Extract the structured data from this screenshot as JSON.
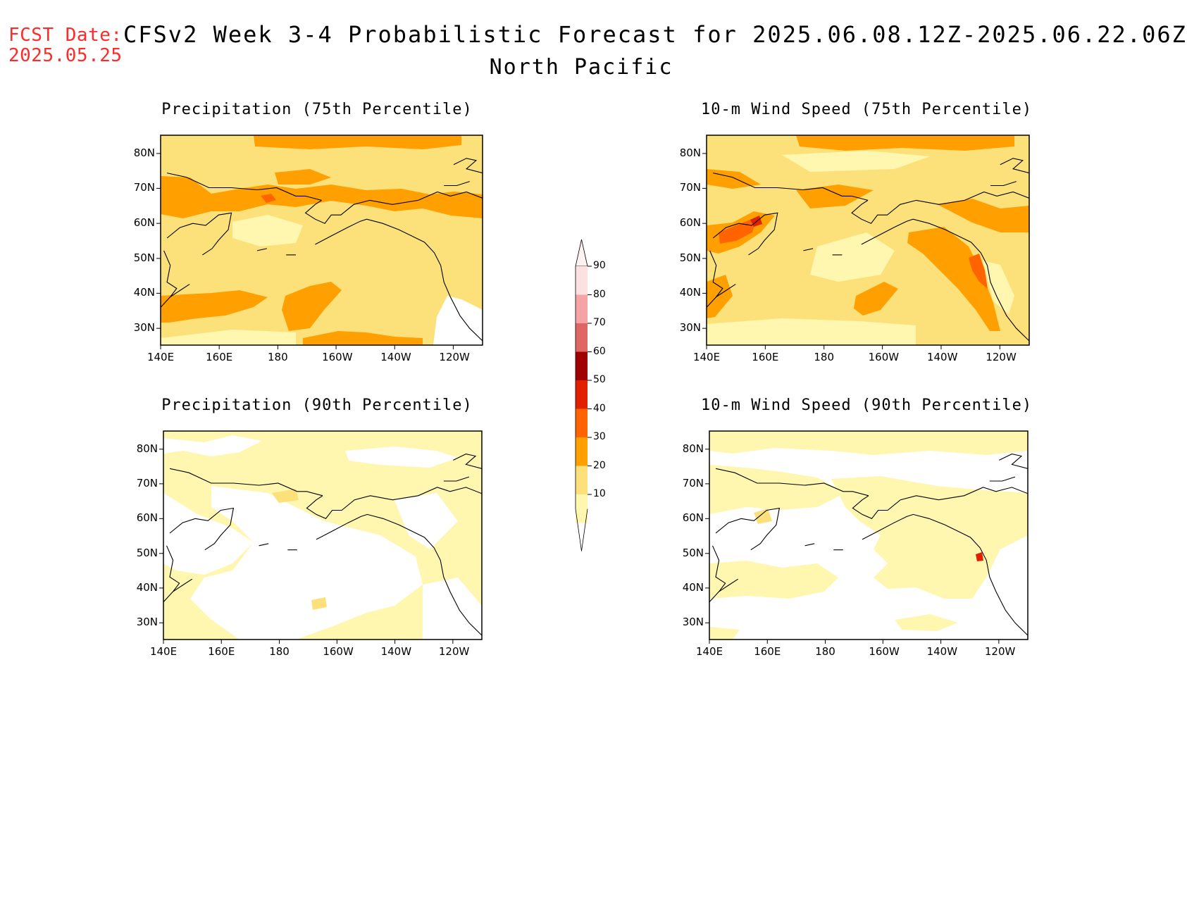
{
  "header": {
    "fcst_label": "FCST Date:",
    "fcst_date": "2025.05.25",
    "title": "CFSv2 Week 3-4 Probabilistic Forecast for 2025.06.08.12Z-2025.06.22.06Z",
    "subtitle": "North Pacific"
  },
  "axes": {
    "x_ticks": [
      "140E",
      "160E",
      "180",
      "160W",
      "140W",
      "120W"
    ],
    "y_ticks": [
      "80N",
      "70N",
      "60N",
      "50N",
      "40N",
      "30N"
    ]
  },
  "panels": [
    {
      "title": "Precipitation (75th Percentile)"
    },
    {
      "title": "10-m Wind Speed (75th Percentile)"
    },
    {
      "title": "Precipitation (90th Percentile)"
    },
    {
      "title": "10-m Wind Speed (90th Percentile)"
    }
  ],
  "colorbar": {
    "labels": [
      "90",
      "80",
      "70",
      "60",
      "50",
      "40",
      "30",
      "20",
      "10"
    ],
    "colors": [
      "#fde0e0",
      "#f4a4a4",
      "#e06666",
      "#a00000",
      "#e02000",
      "#ff6400",
      "#ffa000",
      "#fce17a",
      "#fff6b0"
    ]
  },
  "palette": {
    "white": "#ffffff",
    "pale_yellow": "#fff6b0",
    "yellow": "#fce17a",
    "orange": "#ffa000",
    "dark_orange": "#ff6400",
    "red": "#e02000"
  }
}
